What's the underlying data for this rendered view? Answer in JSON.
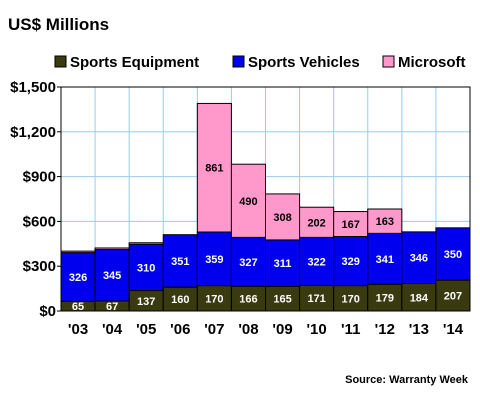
{
  "chart_data": {
    "type": "bar",
    "stacked": true,
    "title": "US$ Millions",
    "source": "Source: Warranty Week",
    "categories": [
      "'03",
      "'04",
      "'05",
      "'06",
      "'07",
      "'08",
      "'09",
      "'10",
      "'11",
      "'12",
      "'13",
      "'14"
    ],
    "series": [
      {
        "name": "Sports Equipment",
        "color": "#3a3a10",
        "values": [
          65,
          67,
          137,
          160,
          170,
          166,
          165,
          171,
          170,
          179,
          184,
          207
        ],
        "label_color": "#ffffff"
      },
      {
        "name": "Sports Vehicles",
        "color": "#0000ee",
        "values": [
          326,
          345,
          310,
          351,
          359,
          327,
          311,
          322,
          329,
          341,
          346,
          350
        ],
        "label_color": "#ffffff"
      },
      {
        "name": "Microsoft",
        "color": "#ff99cc",
        "values": [
          10,
          10,
          10,
          0,
          861,
          490,
          308,
          202,
          167,
          163,
          0,
          0
        ],
        "labels": [
          "",
          "",
          "",
          "",
          "861",
          "490",
          "308",
          "202",
          "167",
          "163",
          "",
          ""
        ],
        "label_color": "#000000"
      }
    ],
    "y_ticks": [
      "$0",
      "$300",
      "$600",
      "$900",
      "$1,200",
      "$1,500"
    ],
    "y_tick_values": [
      0,
      300,
      600,
      900,
      1200,
      1500
    ],
    "ylim": [
      0,
      1500
    ],
    "grid": true,
    "grid_color": "#99ccee",
    "legend_position": "top",
    "xlabel": "",
    "ylabel": ""
  }
}
